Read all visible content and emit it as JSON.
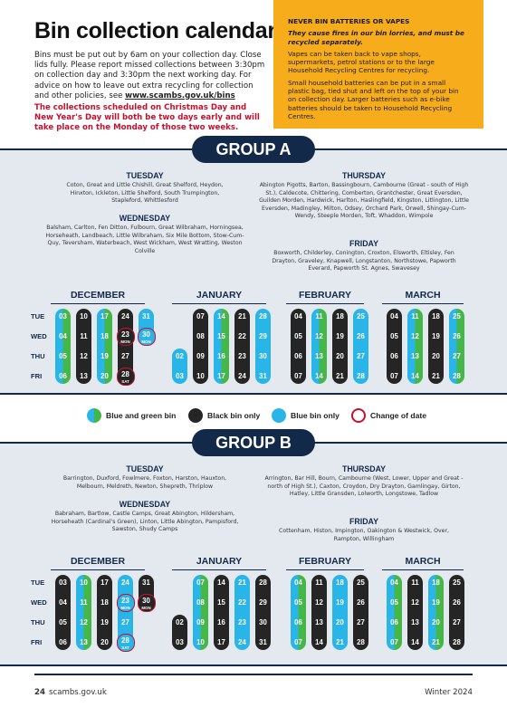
{
  "title": "Bin collection calendar",
  "intro": {
    "text": "Bins must be put out by 6am on your collection day. Close lids fully. Please report missed collections between 3:30pm on collection day and 3:30pm the next working day. For advice on how to leave out extra recycling for collection and other policies, see ",
    "link": "www.scambs.gov.uk/bins"
  },
  "note": "The collections scheduled on Christmas Day and New Year's Day will both be two days early and will take place on the Monday of those two weeks.",
  "warning": {
    "heading": "NEVER BIN BATTERIES OR VAPES",
    "subheading": "They cause fires in our bin lorries, and must be recycled separately.",
    "p1": "Vapes can be taken back to vape shops, supermarkets, petrol stations or to the large Household Recycling Centres for recycling.",
    "p2": "Small household batteries can be put in a small plastic bag, tied shut and left on the top of your bin on collection day. Larger batteries such as e-bike batteries should be taken to Household Recycling Centres."
  },
  "groupA": {
    "label": "GROUP A",
    "tuesday": {
      "heading": "TUESDAY",
      "text": "Coton, Great and Little Chishill, Great Shelford, Heydon, Hinxton, Ickleton, Little Shelford, South Trumpington, Stapleford, Whittlesford"
    },
    "wednesday": {
      "heading": "WEDNESDAY",
      "text": "Balsham, Carlton, Fen Ditton, Fulbourn, Great Wilbraham, Horningsea, Horseheath, Landbeach, Little Wilbraham, Six Mile Bottom, Stow-Cum-Quy, Teversham, Waterbeach, West Wickham, West Wratting, Weston Colville"
    },
    "thursday": {
      "heading": "THURSDAY",
      "text": "Abington Pigotts, Barton, Bassingbourn, Cambourne (Great - south of High St.), Caldecote, Chittering, Comberton, Grantchester, Great Eversden, Guilden Morden, Hardwick, Harlton, Haslingfield, Kingston, Litlington, Little Eversden, Madingley, Milton, Odsey, Orchard Park, Orwell, Shingay-Cum- Wendy, Steeple Morden, Toft, Whaddon, Wimpole"
    },
    "friday": {
      "heading": "FRIDAY",
      "text": "Boxworth, Childerley, Conington, Croxton, Elsworth, Eltisley, Fen Drayton, Graveley, Knapwell, Longstanton, Northstowe, Papworth Everard, Papworth St. Agnes, Swavesey"
    }
  },
  "groupB": {
    "label": "GROUP B",
    "tuesday": {
      "heading": "TUESDAY",
      "text": "Barrington, Duxford, Fowlmere, Foxton, Harston, Hauxton, Melbourn, Meldreth, Newton, Shepreth, Thriplow"
    },
    "wednesday": {
      "heading": "WEDNESDAY",
      "text": "Babraham, Bartlow, Castle Camps, Great Abington, Hildersham, Horseheath (Cardinal's Green), Linton, Little Abington, Pampisford, Sawston, Shudy Camps"
    },
    "thursday": {
      "heading": "THURSDAY",
      "text": "Arrington, Bar Hill, Bourn, Cambourne (West, Lower, Upper and Great - north of High St.), Caxton, Croydon, Dry Drayton, Gamlingay, Girton, Hatley, Little Gransden, Lolworth, Longstowe, Tadlow"
    },
    "friday": {
      "heading": "FRIDAY",
      "text": "Cottenham, Histon, Impington, Oakington & Westwick, Over, Rampton, Willingham"
    }
  },
  "months": [
    "DECEMBER",
    "JANUARY",
    "FEBRUARY",
    "MARCH"
  ],
  "weekdays": [
    "TUE",
    "WED",
    "THU",
    "FRI"
  ],
  "legend": {
    "blue_green": "Blue and green bin",
    "black": "Black bin only",
    "blue": "Blue bin only",
    "change": "Change of date"
  },
  "calA": [
    {
      "c": "m",
      "d": [
        "03",
        "04",
        "05",
        "06"
      ]
    },
    {
      "c": "k",
      "d": [
        "10",
        "11",
        "12",
        "13"
      ]
    },
    {
      "c": "m",
      "d": [
        "17",
        "18",
        "19",
        "20"
      ]
    },
    {
      "c": "k",
      "d": [
        "24",
        {
          "n": "23",
          "s": "MON"
        },
        "27",
        {
          "n": "28",
          "s": "SAT"
        }
      ]
    },
    {
      "c": "b",
      "d": [
        "31",
        {
          "n": "30",
          "s": "MON"
        },
        "",
        ""
      ]
    },
    {
      "c": "b",
      "d": [
        "",
        "",
        "02",
        "03"
      ]
    },
    {
      "c": "k",
      "d": [
        "07",
        "08",
        "09",
        "10"
      ]
    },
    {
      "c": "m",
      "d": [
        "14",
        "15",
        "16",
        "17"
      ]
    },
    {
      "c": "k",
      "d": [
        "21",
        "22",
        "23",
        "24"
      ]
    },
    {
      "c": "b",
      "d": [
        "28",
        "29",
        "30",
        "31"
      ]
    },
    {
      "c": "k",
      "d": [
        "04",
        "05",
        "06",
        "07"
      ]
    },
    {
      "c": "m",
      "d": [
        "11",
        "12",
        "13",
        "14"
      ]
    },
    {
      "c": "k",
      "d": [
        "18",
        "19",
        "20",
        "21"
      ]
    },
    {
      "c": "b",
      "d": [
        "25",
        "26",
        "27",
        "28"
      ]
    },
    {
      "c": "k",
      "d": [
        "04",
        "05",
        "06",
        "07"
      ]
    },
    {
      "c": "m",
      "d": [
        "11",
        "12",
        "13",
        "14"
      ]
    },
    {
      "c": "k",
      "d": [
        "18",
        "19",
        "20",
        "21"
      ]
    },
    {
      "c": "m",
      "d": [
        "25",
        "26",
        "27",
        "28"
      ]
    }
  ],
  "calB": [
    {
      "c": "k",
      "d": [
        "03",
        "04",
        "05",
        "06"
      ]
    },
    {
      "c": "m",
      "d": [
        "10",
        "11",
        "12",
        "13"
      ]
    },
    {
      "c": "k",
      "d": [
        "17",
        "18",
        "19",
        "20"
      ]
    },
    {
      "c": "b",
      "d": [
        "24",
        {
          "n": "23",
          "s": "MON"
        },
        "27",
        {
          "n": "28",
          "s": "SAT"
        }
      ]
    },
    {
      "c": "k",
      "d": [
        "31",
        {
          "n": "30",
          "s": "MON"
        },
        "",
        ""
      ]
    },
    {
      "c": "k",
      "d": [
        "",
        "",
        "02",
        "03"
      ]
    },
    {
      "c": "m",
      "d": [
        "07",
        "08",
        "09",
        "10"
      ]
    },
    {
      "c": "k",
      "d": [
        "14",
        "15",
        "16",
        "17"
      ]
    },
    {
      "c": "b",
      "d": [
        "21",
        "22",
        "23",
        "24"
      ]
    },
    {
      "c": "k",
      "d": [
        "28",
        "29",
        "30",
        "31"
      ]
    },
    {
      "c": "m",
      "d": [
        "04",
        "05",
        "06",
        "07"
      ]
    },
    {
      "c": "k",
      "d": [
        "11",
        "12",
        "13",
        "14"
      ]
    },
    {
      "c": "b",
      "d": [
        "18",
        "19",
        "20",
        "21"
      ]
    },
    {
      "c": "k",
      "d": [
        "25",
        "26",
        "27",
        "28"
      ]
    },
    {
      "c": "m",
      "d": [
        "04",
        "05",
        "06",
        "07"
      ]
    },
    {
      "c": "k",
      "d": [
        "11",
        "12",
        "13",
        "14"
      ]
    },
    {
      "c": "m",
      "d": [
        "18",
        "19",
        "20",
        "21"
      ]
    },
    {
      "c": "k",
      "d": [
        "25",
        "26",
        "27",
        "28"
      ]
    }
  ],
  "colors": {
    "navy": "#12294a",
    "blue": "#29b5e8",
    "green": "#45b749",
    "black": "#252525",
    "red": "#c8102e",
    "amber": "#f7ad1b"
  },
  "footer": {
    "page": "24",
    "site": "scambs.gov.uk",
    "season": "Winter 2024"
  }
}
